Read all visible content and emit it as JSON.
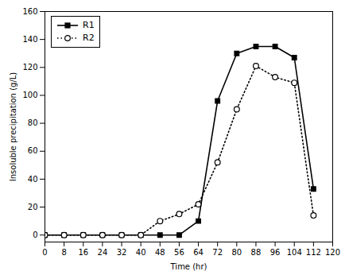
{
  "chart_data": {
    "type": "line",
    "xlabel": "Time (hr)",
    "ylabel": "Insoluble precipitation (g/L)",
    "x": [
      0,
      8,
      16,
      24,
      32,
      40,
      48,
      56,
      64,
      72,
      80,
      88,
      96,
      104,
      112
    ],
    "series": [
      {
        "name": "R1",
        "color": "#000000",
        "marker": "square",
        "line_style": "solid",
        "values": [
          0,
          0,
          0,
          0,
          0,
          0,
          0,
          0,
          10,
          96,
          130,
          135,
          135,
          127,
          33
        ]
      },
      {
        "name": "R2",
        "color": "#000000",
        "marker": "circle-open",
        "line_style": "dotted",
        "values": [
          0,
          0,
          0,
          0,
          0,
          0,
          10,
          15,
          22,
          52,
          90,
          121,
          113,
          109,
          14
        ]
      }
    ],
    "xlim": [
      0,
      120
    ],
    "ylim": [
      -5,
      160
    ],
    "xticks": [
      0,
      8,
      16,
      24,
      32,
      40,
      48,
      56,
      64,
      72,
      80,
      88,
      96,
      104,
      112,
      120
    ],
    "yticks": [
      0,
      20,
      40,
      60,
      80,
      100,
      120,
      140,
      160
    ],
    "grid": false,
    "legend": "upper left"
  }
}
